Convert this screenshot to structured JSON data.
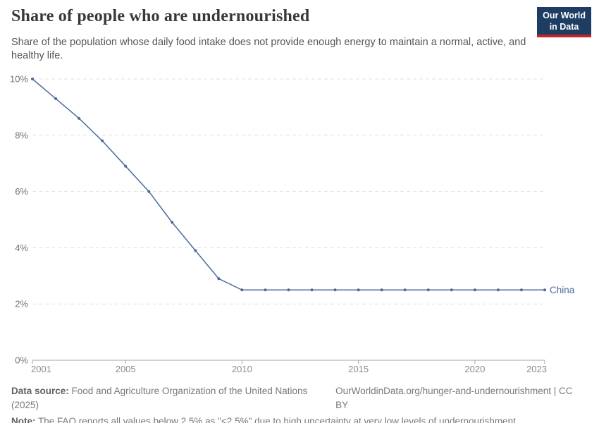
{
  "header": {
    "title": "Share of people who are undernourished",
    "subtitle": "Share of the population whose daily food intake does not provide enough energy to maintain a normal, active, and healthy life.",
    "logo": {
      "line1": "Our World",
      "line2": "in Data"
    }
  },
  "chart_data": {
    "type": "line",
    "title": "Share of people who are undernourished",
    "subtitle": "Share of the population whose daily food intake does not provide enough energy to maintain a normal, active, and healthy life.",
    "xlabel": "",
    "ylabel": "",
    "xlim": [
      2001,
      2023
    ],
    "ylim": [
      0,
      10
    ],
    "grid": "horizontal-dashed",
    "legend_position": "end-of-line",
    "x": [
      2001,
      2002,
      2003,
      2004,
      2005,
      2006,
      2007,
      2008,
      2009,
      2010,
      2011,
      2012,
      2013,
      2014,
      2015,
      2016,
      2017,
      2018,
      2019,
      2020,
      2021,
      2022,
      2023
    ],
    "series": [
      {
        "name": "China",
        "color": "#4c6a9c",
        "values": [
          10,
          9.3,
          8.6,
          7.8,
          6.9,
          6,
          4.9,
          3.9,
          2.9,
          2.5,
          2.5,
          2.5,
          2.5,
          2.5,
          2.5,
          2.5,
          2.5,
          2.5,
          2.5,
          2.5,
          2.5,
          2.5,
          2.5
        ]
      }
    ],
    "x_ticks": [
      {
        "value": 2001,
        "label": "2001"
      },
      {
        "value": 2005,
        "label": "2005"
      },
      {
        "value": 2010,
        "label": "2010"
      },
      {
        "value": 2015,
        "label": "2015"
      },
      {
        "value": 2020,
        "label": "2020"
      },
      {
        "value": 2023,
        "label": "2023"
      }
    ],
    "y_ticks": [
      {
        "value": 0,
        "label": "0%"
      },
      {
        "value": 2,
        "label": "2%"
      },
      {
        "value": 4,
        "label": "4%"
      },
      {
        "value": 6,
        "label": "6%"
      },
      {
        "value": 8,
        "label": "8%"
      },
      {
        "value": 10,
        "label": "10%"
      }
    ]
  },
  "footer": {
    "datasource_label": "Data source:",
    "datasource_text": " Food and Agriculture Organization of the United Nations (2025)",
    "link_text": "OurWorldinData.org/hunger-and-undernourishment | CC BY",
    "note_label": "Note:",
    "note_text": " The FAO reports all values below 2.5% as \"<2.5%\" due to high uncertainty at very low levels of undernourishment."
  },
  "colors": {
    "series": "#4c6a9c",
    "gridline": "#e0e0e0",
    "axis": "#a6a6a6",
    "y_tick_text": "#737373",
    "x_tick_text": "#8c8c8c",
    "logo_bg": "#1d3d63",
    "logo_stripe": "#c0232c"
  }
}
